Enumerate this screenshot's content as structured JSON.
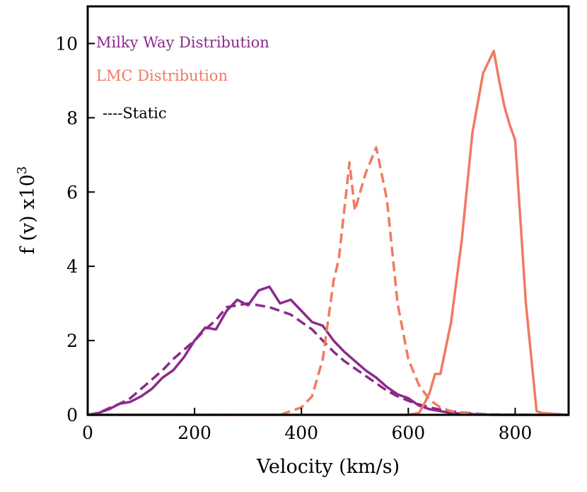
{
  "chart_data": {
    "type": "line",
    "title": "",
    "xlabel": "Velocity (km/s)",
    "ylabel_base": "f (v) x10",
    "ylabel_exp": "3",
    "xlim": [
      0,
      900
    ],
    "ylim": [
      0,
      11
    ],
    "xticks": [
      0,
      200,
      400,
      600,
      800
    ],
    "xtick_labels": [
      "0",
      "200",
      "400",
      "600",
      "800"
    ],
    "yticks": [
      0,
      2,
      4,
      6,
      8,
      10
    ],
    "ytick_labels": [
      "0",
      "2",
      "4",
      "6",
      "8",
      "10"
    ],
    "grid": false,
    "legend": {
      "placement": "top-left",
      "entries": [
        {
          "label": "Milky Way Distribution",
          "color": "#8b2a8b"
        },
        {
          "label": "LMC Distribution",
          "color": "#f07a62"
        },
        {
          "label": "----Static",
          "color": "#000000"
        }
      ]
    },
    "series": [
      {
        "name": "Milky Way (solid)",
        "color": "#8b2a8b",
        "style": "solid",
        "x": [
          0,
          20,
          40,
          60,
          80,
          100,
          120,
          140,
          160,
          180,
          200,
          220,
          240,
          260,
          280,
          300,
          320,
          340,
          360,
          380,
          400,
          420,
          440,
          460,
          480,
          500,
          520,
          540,
          560,
          580,
          600,
          620,
          640,
          660,
          680,
          700,
          720,
          740,
          760,
          780,
          800,
          900
        ],
        "y": [
          0,
          0.05,
          0.15,
          0.3,
          0.35,
          0.5,
          0.7,
          1.0,
          1.2,
          1.55,
          2.0,
          2.35,
          2.3,
          2.8,
          3.1,
          2.95,
          3.35,
          3.45,
          3.0,
          3.1,
          2.8,
          2.5,
          2.4,
          2.0,
          1.7,
          1.45,
          1.2,
          1.0,
          0.75,
          0.55,
          0.45,
          0.25,
          0.15,
          0.1,
          0.05,
          0.03,
          0.02,
          0.01,
          0.0,
          0.0,
          0.0,
          0.0
        ]
      },
      {
        "name": "Milky Way Static (dashed)",
        "color": "#8b2a8b",
        "style": "dashed",
        "x": [
          0,
          20,
          40,
          60,
          80,
          100,
          120,
          140,
          160,
          180,
          200,
          220,
          240,
          260,
          280,
          300,
          320,
          340,
          360,
          380,
          400,
          420,
          440,
          460,
          480,
          500,
          520,
          540,
          560,
          580,
          600,
          620,
          640,
          660,
          680,
          700,
          720,
          740,
          760,
          800,
          900
        ],
        "y": [
          0,
          0.05,
          0.18,
          0.3,
          0.45,
          0.7,
          0.95,
          1.2,
          1.5,
          1.75,
          2.0,
          2.3,
          2.55,
          2.9,
          2.95,
          3.0,
          2.95,
          2.9,
          2.8,
          2.7,
          2.5,
          2.3,
          2.0,
          1.7,
          1.45,
          1.25,
          1.05,
          0.85,
          0.65,
          0.5,
          0.38,
          0.28,
          0.2,
          0.14,
          0.1,
          0.06,
          0.04,
          0.02,
          0.01,
          0.0,
          0.0
        ]
      },
      {
        "name": "LMC Static (dashed)",
        "color": "#f07a62",
        "style": "dashed",
        "x": [
          0,
          360,
          380,
          400,
          420,
          440,
          460,
          470,
          480,
          490,
          500,
          510,
          520,
          540,
          560,
          580,
          600,
          620,
          640,
          660,
          680,
          700,
          720,
          740,
          760,
          900
        ],
        "y": [
          0,
          0,
          0.1,
          0.2,
          0.5,
          1.5,
          3.6,
          4.2,
          5.5,
          6.8,
          5.5,
          6.0,
          6.5,
          7.2,
          5.8,
          3.0,
          1.5,
          0.8,
          0.4,
          0.2,
          0.1,
          0.05,
          0.02,
          0.01,
          0.0,
          0.0
        ]
      },
      {
        "name": "LMC (solid)",
        "color": "#f07a62",
        "style": "solid",
        "x": [
          0,
          600,
          620,
          630,
          640,
          650,
          660,
          680,
          700,
          720,
          740,
          760,
          770,
          780,
          790,
          800,
          820,
          840,
          850,
          900
        ],
        "y": [
          0,
          0,
          0.05,
          0.3,
          0.6,
          1.1,
          1.1,
          2.5,
          4.7,
          7.6,
          9.2,
          9.8,
          9.0,
          8.3,
          7.8,
          7.4,
          3.0,
          0.1,
          0.05,
          0.0
        ]
      }
    ]
  }
}
